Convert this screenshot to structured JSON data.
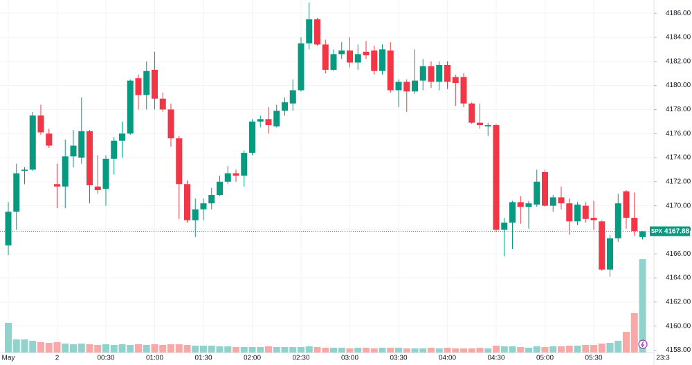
{
  "chart_data": {
    "type": "candlestick",
    "symbol": "SPX",
    "time_marker": "23:3",
    "categories": [
      "May",
      null,
      null,
      null,
      null,
      null,
      "2",
      null,
      null,
      null,
      null,
      null,
      "00:30",
      null,
      null,
      null,
      null,
      null,
      "01:00",
      null,
      null,
      null,
      null,
      null,
      "01:30",
      null,
      null,
      null,
      null,
      null,
      "02:00",
      null,
      null,
      null,
      null,
      null,
      "02:30",
      null,
      null,
      null,
      null,
      null,
      "03:00",
      null,
      null,
      null,
      null,
      null,
      "03:30",
      null,
      null,
      null,
      null,
      null,
      "04:00",
      null,
      null,
      null,
      null,
      null,
      "04:30",
      null,
      null,
      null,
      null,
      null,
      "05:00",
      null,
      null,
      null,
      null,
      null,
      "05:30",
      null,
      null,
      null,
      null,
      null,
      null
    ],
    "open": [
      4166.7,
      4169.5,
      4172.9,
      4173.0,
      4177.5,
      4176.0,
      4171.8,
      4171.6,
      4174.1,
      4174.0,
      4176.2,
      4171.6,
      4171.4,
      4173.9,
      4175.4,
      4176.0,
      4180.6,
      4179.2,
      4181.3,
      4178.9,
      4178.0,
      4175.6,
      4171.8,
      4168.8,
      4169.7,
      4170.2,
      4170.9,
      4172.0,
      4172.7,
      4172.5,
      4174.4,
      4177.0,
      4177.2,
      4176.6,
      4177.9,
      4178.5,
      4179.6,
      4183.5,
      4185.5,
      4183.4,
      4181.3,
      4182.6,
      4182.9,
      4181.9,
      4182.8,
      4182.9,
      4181.2,
      4182.9,
      4179.6,
      4180.3,
      4179.5,
      4180.4,
      4181.6,
      4180.3,
      4181.7,
      4180.7,
      4180.7,
      4178.5,
      4176.9,
      4176.6,
      4176.7,
      4168.0,
      4168.6,
      4170.3,
      4169.9,
      4170.1,
      4172.8,
      4170.0,
      4170.7,
      4170.2,
      4168.7,
      4170.0,
      4169.0,
      4168.7,
      4164.7,
      4167.3,
      4171.2,
      4169.0,
      4167.4
    ],
    "high": [
      4170.3,
      4173.5,
      4173.2,
      4177.8,
      4178.4,
      4176.4,
      4173.5,
      4175.5,
      4176.3,
      4179.0,
      4176.3,
      4174.2,
      4174.2,
      4175.7,
      4177.0,
      4180.5,
      4180.9,
      4182.0,
      4182.8,
      4179.4,
      4178.5,
      4175.8,
      4172.1,
      4170.6,
      4170.6,
      4171.5,
      4172.5,
      4173.3,
      4173.0,
      4174.6,
      4177.2,
      4177.5,
      4178.2,
      4178.4,
      4179.0,
      4180.5,
      4184.0,
      4186.9,
      4185.6,
      4183.8,
      4183.0,
      4183.6,
      4184.0,
      4183.4,
      4183.7,
      4183.3,
      4183.4,
      4183.6,
      4180.5,
      4180.5,
      4183.0,
      4182.2,
      4182.0,
      4182.0,
      4182.0,
      4180.9,
      4181.0,
      4178.6,
      4178.5,
      4176.9,
      4176.8,
      4169.0,
      4170.4,
      4170.8,
      4170.4,
      4173.0,
      4173.0,
      4170.9,
      4171.6,
      4170.6,
      4170.3,
      4170.3,
      4170.4,
      4168.8,
      4167.6,
      4171.0,
      4171.3,
      4171.1,
      4167.9
    ],
    "low": [
      4165.9,
      4168.0,
      4171.8,
      4172.9,
      4175.9,
      4174.8,
      4169.8,
      4169.8,
      4173.2,
      4173.5,
      4170.2,
      4171.0,
      4170.0,
      4172.6,
      4174.0,
      4175.9,
      4178.0,
      4178.0,
      4178.0,
      4177.8,
      4174.9,
      4168.9,
      4168.6,
      4167.4,
      4168.8,
      4169.7,
      4170.8,
      4171.8,
      4172.0,
      4171.6,
      4174.2,
      4176.5,
      4176.0,
      4176.5,
      4177.5,
      4177.9,
      4179.5,
      4183.0,
      4183.3,
      4181.0,
      4181.2,
      4182.2,
      4181.5,
      4181.3,
      4182.2,
      4180.9,
      4180.9,
      4179.4,
      4178.2,
      4177.8,
      4179.3,
      4179.6,
      4179.8,
      4179.6,
      4179.7,
      4178.3,
      4178.2,
      4176.8,
      4176.4,
      4175.8,
      4167.8,
      4165.8,
      4166.4,
      4168.5,
      4168.1,
      4169.9,
      4169.9,
      4169.5,
      4169.7,
      4167.6,
      4168.4,
      4168.6,
      4168.0,
      4164.6,
      4164.1,
      4167.0,
      4168.1,
      4167.5,
      4167.2
    ],
    "close": [
      4169.5,
      4172.7,
      4173.0,
      4177.5,
      4176.1,
      4175.0,
      4171.6,
      4174.1,
      4175.0,
      4176.2,
      4171.7,
      4171.3,
      4173.9,
      4175.4,
      4176.0,
      4180.4,
      4179.2,
      4181.2,
      4178.9,
      4178.0,
      4175.6,
      4171.8,
      4168.8,
      4169.7,
      4170.2,
      4170.9,
      4172.0,
      4172.7,
      4172.5,
      4174.4,
      4177.0,
      4177.2,
      4176.7,
      4177.9,
      4178.6,
      4179.6,
      4183.5,
      4185.5,
      4183.4,
      4181.3,
      4182.6,
      4182.9,
      4181.9,
      4182.6,
      4182.5,
      4181.2,
      4183.0,
      4179.6,
      4180.3,
      4179.5,
      4180.4,
      4181.6,
      4180.3,
      4181.7,
      4180.3,
      4180.2,
      4178.5,
      4176.9,
      4176.7,
      4176.7,
      4168.0,
      4168.6,
      4170.3,
      4169.9,
      4170.2,
      4172.0,
      4170.0,
      4170.7,
      4170.2,
      4168.7,
      4170.1,
      4168.9,
      4168.8,
      4164.7,
      4167.3,
      4170.2,
      4169.0,
      4167.9,
      4167.88
    ],
    "volume": [
      43,
      19,
      19,
      17,
      15,
      14,
      15,
      13,
      12,
      13,
      12,
      11,
      12,
      11,
      12,
      11,
      12,
      11,
      12,
      11,
      12,
      12,
      11,
      10,
      10,
      10,
      9,
      9,
      8,
      8,
      8,
      8,
      9,
      8,
      8,
      8,
      8,
      9,
      8,
      7,
      7,
      7,
      6,
      7,
      7,
      6,
      7,
      7,
      7,
      6,
      6,
      6,
      7,
      6,
      7,
      6,
      6,
      6,
      7,
      6,
      10,
      9,
      9,
      8,
      7,
      9,
      8,
      9,
      9,
      10,
      10,
      11,
      11,
      13,
      14,
      17,
      30,
      57,
      135
    ],
    "up_color": "#089981",
    "down_color": "#f23645",
    "volume_up_color": "#92d2cc",
    "volume_down_color": "#f7a9a7",
    "ylim": [
      4157.8,
      4187.1
    ],
    "yticks": [
      {
        "value": 4158,
        "label": "4158.00"
      },
      {
        "value": 4160,
        "label": "4160.00"
      },
      {
        "value": 4162,
        "label": "4162.00"
      },
      {
        "value": 4164,
        "label": "4164.00"
      },
      {
        "value": 4166,
        "label": "4166.00"
      },
      {
        "value": 4168,
        "label": "4168.00"
      },
      {
        "value": 4170,
        "label": "4170.00"
      },
      {
        "value": 4172,
        "label": "4172.00"
      },
      {
        "value": 4174,
        "label": "4174.00"
      },
      {
        "value": 4176,
        "label": "4176.00"
      },
      {
        "value": 4178,
        "label": "4178.00"
      },
      {
        "value": 4180,
        "label": "4180.00"
      },
      {
        "value": 4182,
        "label": "4182.00"
      },
      {
        "value": 4184,
        "label": "4184.00"
      },
      {
        "value": 4186,
        "label": "4186.00"
      }
    ],
    "grid": true
  }
}
